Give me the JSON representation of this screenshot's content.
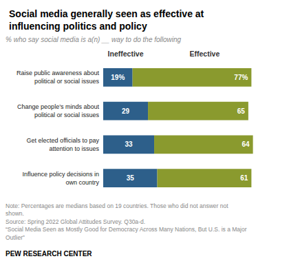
{
  "chart_data": {
    "type": "bar",
    "orientation": "horizontal",
    "stacked": true,
    "title": "Social media generally seen as effective at\ninfluencing politics and policy",
    "subtitle": "% who say social media is a(n) __ way to do the following",
    "categories": [
      "Raise public awareness about\npolitical or social issues",
      "Change people’s minds about\npolitical or social issues",
      "Get elected officials to pay\nattention to issues",
      "Influence policy decisions in\nown country"
    ],
    "series": [
      {
        "name": "Ineffective",
        "color": "#2d5f8a",
        "values": [
          19,
          29,
          33,
          35
        ],
        "value_labels": [
          "19%",
          "29",
          "33",
          "35"
        ]
      },
      {
        "name": "Effective",
        "color": "#8a9a2e",
        "values": [
          77,
          65,
          64,
          61
        ],
        "value_labels": [
          "77%",
          "65",
          "64",
          "61"
        ]
      }
    ],
    "data_labels": true,
    "xlim": [
      0,
      115
    ],
    "tick_labels": false,
    "notes": [
      "Note: Percentages are medians based on 19 countries. Those who did not answer not",
      "shown.",
      "Source: Spring 2022 Global Attitudes Survey. Q30a-d.",
      "“Social Media Seen as Mostly Good for Democracy Across Many Nations, But U.S. is a Major",
      "Outlier”"
    ],
    "footer": "PEW RESEARCH CENTER"
  }
}
